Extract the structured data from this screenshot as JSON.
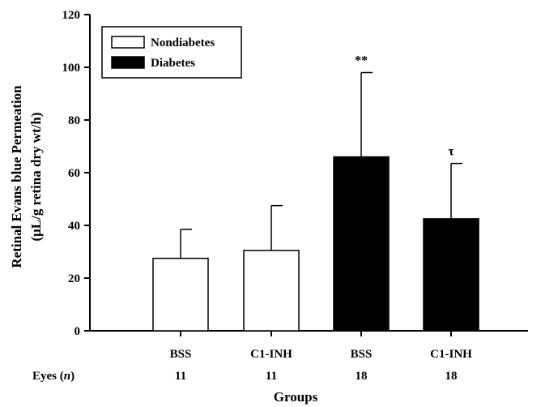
{
  "chart_data": {
    "type": "bar",
    "ylabel_line1": "Retinal Evans blue Permeation",
    "ylabel_line2": "(μL/g retina dry wt/h)",
    "xlabel": "Groups",
    "ylim": [
      0,
      120
    ],
    "yticks": [
      0,
      20,
      40,
      60,
      80,
      100,
      120
    ],
    "categories": [
      "BSS",
      "C1-INH",
      "BSS",
      "C1-INH"
    ],
    "eyes_label_prefix": "Eyes (",
    "eyes_label_n": "n",
    "eyes_label_suffix": ")",
    "eyes_n": [
      "11",
      "11",
      "18",
      "18"
    ],
    "values": [
      27.5,
      30.5,
      66,
      42.5
    ],
    "errors": [
      11,
      17,
      32,
      21
    ],
    "group": [
      "Nondiabetes",
      "Nondiabetes",
      "Diabetes",
      "Diabetes"
    ],
    "annotations": [
      "",
      "",
      "**",
      "τ"
    ],
    "legend": [
      {
        "name": "Nondiabetes",
        "fill": "#ffffff"
      },
      {
        "name": "Diabetes",
        "fill": "#000000"
      }
    ],
    "legend_position": "top-left",
    "grid": false,
    "colors": {
      "nondiabetes": "#ffffff",
      "diabetes": "#000000",
      "stroke": "#000000"
    }
  }
}
